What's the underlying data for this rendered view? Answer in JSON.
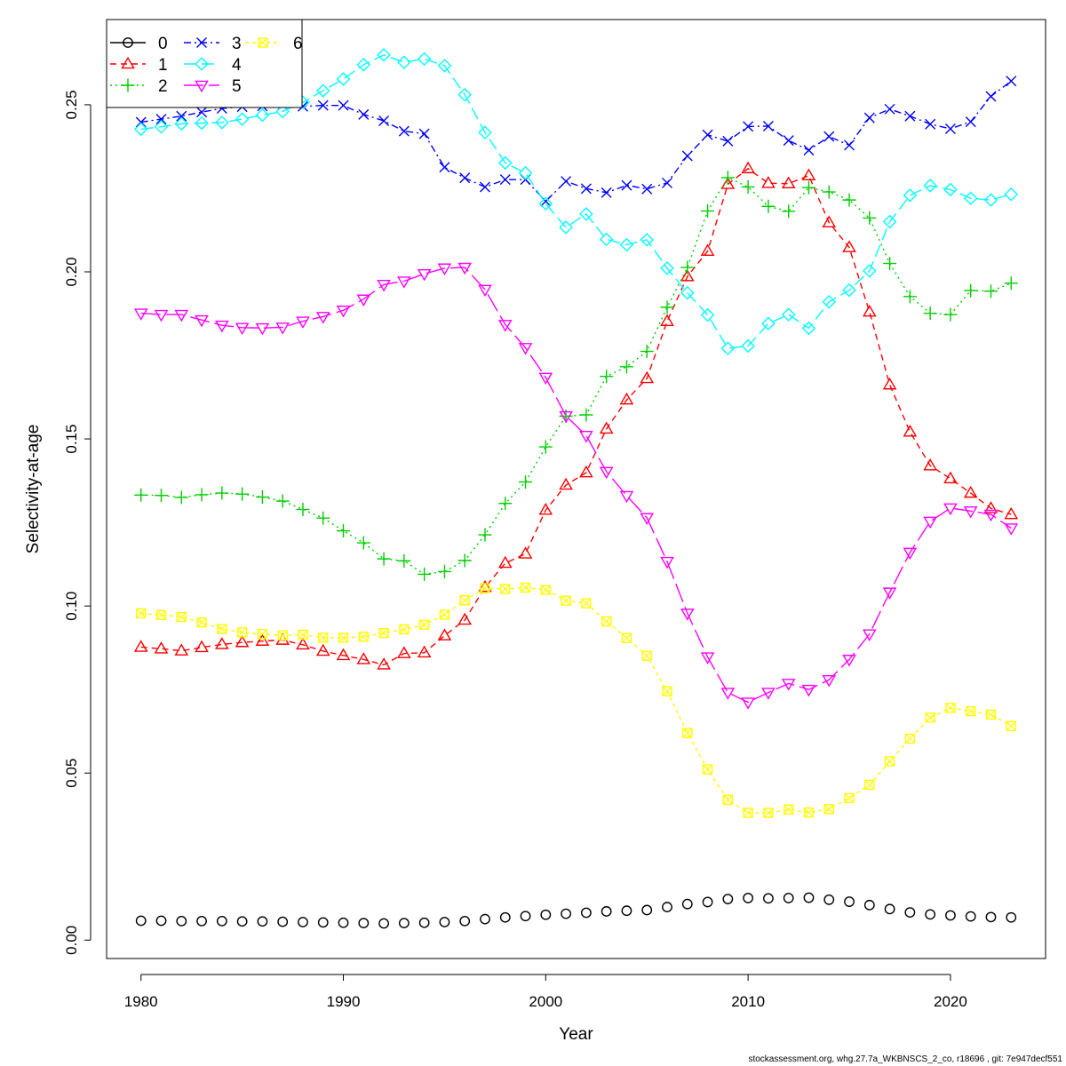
{
  "footer_text": "stockassessment.org, whg.27.7a_WKBNSCS_2_co, r18696 , git: 7e947decf551",
  "chart_data": {
    "type": "line",
    "title": "",
    "xlabel": "Year",
    "ylabel": "Selectivity-at-age",
    "xlim": [
      1978.3,
      2024.7
    ],
    "ylim": [
      -0.0055,
      0.2755
    ],
    "x_ticks": [
      1980,
      1990,
      2000,
      2010,
      2020
    ],
    "y_ticks": [
      0.0,
      0.05,
      0.1,
      0.15,
      0.2,
      0.25
    ],
    "y_tick_labels": [
      "0.00",
      "0.05",
      "0.10",
      "0.15",
      "0.20",
      "0.25"
    ],
    "grid": false,
    "legend_position": "top-left",
    "x": [
      1980,
      1981,
      1982,
      1983,
      1984,
      1985,
      1986,
      1987,
      1988,
      1989,
      1990,
      1991,
      1992,
      1993,
      1994,
      1995,
      1996,
      1997,
      1998,
      1999,
      2000,
      2001,
      2002,
      2003,
      2004,
      2005,
      2006,
      2007,
      2008,
      2009,
      2010,
      2011,
      2012,
      2013,
      2014,
      2015,
      2016,
      2017,
      2018,
      2019,
      2020,
      2021,
      2022,
      2023
    ],
    "series": [
      {
        "name": "0",
        "color": "#000000",
        "marker": "circle",
        "dash": "",
        "values": [
          0.0058,
          0.0058,
          0.0057,
          0.0057,
          0.0057,
          0.0056,
          0.0056,
          0.0055,
          0.0054,
          0.0053,
          0.0052,
          0.0051,
          0.005,
          0.0051,
          0.0052,
          0.0054,
          0.0057,
          0.0063,
          0.0068,
          0.0072,
          0.0076,
          0.0079,
          0.0082,
          0.0086,
          0.0088,
          0.009,
          0.0099,
          0.0108,
          0.0114,
          0.0123,
          0.0126,
          0.0125,
          0.0126,
          0.0127,
          0.0121,
          0.0115,
          0.0105,
          0.0093,
          0.0083,
          0.0077,
          0.0074,
          0.0071,
          0.0069,
          0.0068
        ]
      },
      {
        "name": "1",
        "color": "#ff0000",
        "marker": "triangle-up",
        "dash": "7,5",
        "values": [
          0.0877,
          0.0872,
          0.0866,
          0.0876,
          0.0885,
          0.0891,
          0.0895,
          0.0898,
          0.0884,
          0.0865,
          0.0852,
          0.084,
          0.0824,
          0.0858,
          0.086,
          0.0911,
          0.0958,
          0.1056,
          0.1128,
          0.1156,
          0.1287,
          0.1362,
          0.1399,
          0.153,
          0.1617,
          0.1681,
          0.1852,
          0.1986,
          0.2062,
          0.2262,
          0.2309,
          0.2265,
          0.2264,
          0.2288,
          0.2147,
          0.2073,
          0.188,
          0.1662,
          0.1521,
          0.142,
          0.1381,
          0.1338,
          0.1292,
          0.1274
        ]
      },
      {
        "name": "2",
        "color": "#00cd00",
        "marker": "plus",
        "dash": "2,4",
        "values": [
          0.1332,
          0.1331,
          0.1325,
          0.1333,
          0.1338,
          0.1335,
          0.1326,
          0.1314,
          0.1289,
          0.1263,
          0.1225,
          0.1189,
          0.1141,
          0.1135,
          0.1095,
          0.1103,
          0.1136,
          0.1213,
          0.1307,
          0.1371,
          0.1476,
          0.1568,
          0.1572,
          0.1687,
          0.1716,
          0.1762,
          0.1894,
          0.2013,
          0.2182,
          0.2282,
          0.2254,
          0.2196,
          0.2181,
          0.2252,
          0.2239,
          0.2215,
          0.2161,
          0.2025,
          0.1926,
          0.1876,
          0.1872,
          0.1944,
          0.1942,
          0.1966
        ]
      },
      {
        "name": "3",
        "color": "#0000ff",
        "marker": "cross",
        "dash": "8,4,2,4",
        "values": [
          0.2448,
          0.2457,
          0.2466,
          0.2478,
          0.2489,
          0.2494,
          0.2496,
          0.2499,
          0.2495,
          0.2498,
          0.2498,
          0.2471,
          0.2452,
          0.2421,
          0.2413,
          0.2313,
          0.2281,
          0.2254,
          0.2276,
          0.2276,
          0.2211,
          0.2271,
          0.2249,
          0.2237,
          0.2259,
          0.2248,
          0.2266,
          0.2347,
          0.241,
          0.2391,
          0.2435,
          0.2436,
          0.2393,
          0.2364,
          0.2405,
          0.2379,
          0.2461,
          0.2487,
          0.2466,
          0.2442,
          0.2428,
          0.2449,
          0.2525,
          0.2571
        ]
      },
      {
        "name": "4",
        "color": "#00ffff",
        "marker": "diamond",
        "dash": "14,6",
        "values": [
          0.2427,
          0.2434,
          0.2443,
          0.2445,
          0.2447,
          0.2457,
          0.2469,
          0.248,
          0.2507,
          0.2542,
          0.2577,
          0.262,
          0.2649,
          0.2627,
          0.2637,
          0.2617,
          0.253,
          0.2417,
          0.2326,
          0.2296,
          0.2204,
          0.2133,
          0.2173,
          0.2097,
          0.2081,
          0.2096,
          0.2011,
          0.1937,
          0.1871,
          0.1771,
          0.1778,
          0.1845,
          0.1872,
          0.1831,
          0.191,
          0.1945,
          0.2003,
          0.215,
          0.2229,
          0.2258,
          0.2246,
          0.222,
          0.2215,
          0.2232
        ]
      },
      {
        "name": "5",
        "color": "#ff00ff",
        "marker": "triangle-down",
        "dash": "22,6",
        "values": [
          0.1876,
          0.1872,
          0.1872,
          0.1856,
          0.184,
          0.1833,
          0.1832,
          0.1834,
          0.1852,
          0.1866,
          0.1885,
          0.1918,
          0.1962,
          0.1972,
          0.1994,
          0.2011,
          0.2013,
          0.1947,
          0.1842,
          0.1773,
          0.1684,
          0.1569,
          0.151,
          0.1402,
          0.133,
          0.1264,
          0.1133,
          0.0978,
          0.0847,
          0.0741,
          0.0712,
          0.0741,
          0.0768,
          0.075,
          0.0779,
          0.084,
          0.0916,
          0.1041,
          0.116,
          0.1253,
          0.1293,
          0.1284,
          0.1274,
          0.1233
        ]
      },
      {
        "name": "6",
        "color": "#ffff00",
        "marker": "square-x",
        "dash": "4,4",
        "values": [
          0.0978,
          0.0973,
          0.0967,
          0.0951,
          0.0931,
          0.0921,
          0.0916,
          0.0912,
          0.0914,
          0.0905,
          0.0905,
          0.0908,
          0.0919,
          0.093,
          0.0944,
          0.0974,
          0.1017,
          0.1053,
          0.1051,
          0.1055,
          0.1048,
          0.1016,
          0.1008,
          0.0954,
          0.0904,
          0.0851,
          0.0745,
          0.062,
          0.0511,
          0.042,
          0.0381,
          0.0381,
          0.0391,
          0.0382,
          0.0392,
          0.0425,
          0.0465,
          0.0535,
          0.0603,
          0.0666,
          0.0695,
          0.0685,
          0.0675,
          0.0641
        ]
      }
    ]
  }
}
